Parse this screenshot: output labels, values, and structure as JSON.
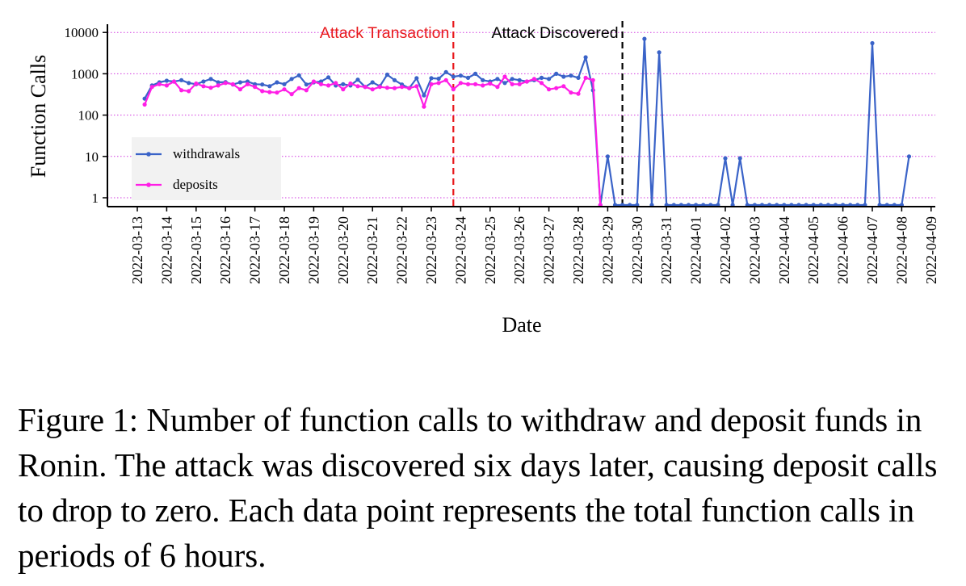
{
  "chart_data": {
    "type": "line",
    "ylabel": "Function Calls",
    "xlabel": "Date",
    "y_scale": "log",
    "y_ticks": [
      1,
      10,
      100,
      1000,
      10000
    ],
    "y_tick_labels": [
      "1",
      "10",
      "100",
      "1000",
      "10000"
    ],
    "x_ticks": [
      "2022-03-13",
      "2022-03-14",
      "2022-03-15",
      "2022-03-16",
      "2022-03-17",
      "2022-03-18",
      "2022-03-19",
      "2022-03-20",
      "2022-03-21",
      "2022-03-22",
      "2022-03-23",
      "2022-03-24",
      "2022-03-25",
      "2022-03-26",
      "2022-03-27",
      "2022-03-28",
      "2022-03-29",
      "2022-03-30",
      "2022-03-31",
      "2022-04-01",
      "2022-04-02",
      "2022-04-03",
      "2022-04-04",
      "2022-04-05",
      "2022-04-06",
      "2022-04-07",
      "2022-04-08",
      "2022-04-09"
    ],
    "grid": true,
    "legend_position": "bottom-left",
    "annotations": [
      {
        "label": "Attack Transaction",
        "date": "2022-03-23 18:00",
        "color": "#e8181c"
      },
      {
        "label": "Attack Discovered",
        "date": "2022-03-29 12:00",
        "color": "#000000"
      }
    ],
    "series": [
      {
        "name": "withdrawals",
        "color": "#3a63c8",
        "start": "2022-03-13 06:00",
        "step_hours": 6,
        "values": [
          250,
          520,
          620,
          680,
          650,
          700,
          600,
          560,
          650,
          750,
          620,
          630,
          550,
          620,
          650,
          560,
          550,
          500,
          620,
          560,
          750,
          920,
          550,
          620,
          650,
          820,
          520,
          560,
          520,
          720,
          480,
          620,
          500,
          950,
          700,
          550,
          450,
          780,
          300,
          780,
          760,
          1100,
          850,
          900,
          800,
          1000,
          700,
          650,
          750,
          600,
          750,
          700,
          650,
          700,
          800,
          750,
          1000,
          850,
          900,
          800,
          2500,
          400,
          0,
          10,
          0,
          0,
          0,
          0,
          7000,
          0,
          3300,
          0,
          0,
          0,
          0,
          0,
          0,
          0,
          0,
          9,
          0,
          9,
          0,
          0,
          0,
          0,
          0,
          0,
          0,
          0,
          0,
          0,
          0,
          0,
          0,
          0,
          0,
          0,
          0,
          5500,
          0,
          0,
          0,
          0,
          10
        ]
      },
      {
        "name": "deposits",
        "color": "#ff1ee6",
        "start": "2022-03-13 06:00",
        "step_hours": 6,
        "values": [
          180,
          480,
          560,
          520,
          650,
          400,
          380,
          580,
          500,
          460,
          520,
          600,
          560,
          420,
          560,
          480,
          380,
          360,
          350,
          420,
          320,
          450,
          400,
          650,
          560,
          520,
          600,
          420,
          580,
          500,
          480,
          420,
          480,
          460,
          450,
          480,
          450,
          500,
          160,
          560,
          600,
          700,
          420,
          600,
          560,
          560,
          520,
          580,
          480,
          850,
          560,
          560,
          650,
          750,
          600,
          420,
          450,
          500,
          350,
          330,
          800,
          700,
          0
        ]
      }
    ]
  },
  "caption": "Figure 1: Number of function calls to withdraw and deposit funds in Ronin.  The attack was discovered six days later, causing deposit calls to drop to zero. Each data point represents the total function calls in periods of 6 hours."
}
